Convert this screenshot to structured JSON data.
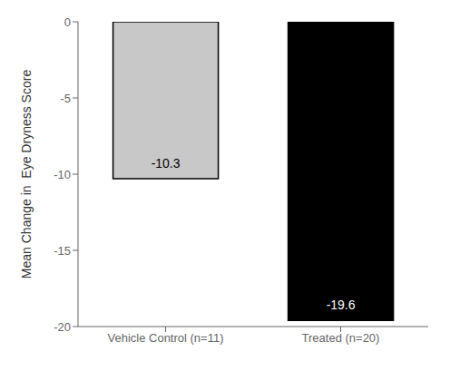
{
  "chart_data": {
    "type": "bar",
    "categories": [
      "Vehicle Control (n=11)",
      "Treated (n=20)"
    ],
    "values": [
      -10.3,
      -19.6
    ],
    "value_labels": [
      "-10.3",
      "-19.6"
    ],
    "colors": [
      "#c8c8c8",
      "#000000"
    ],
    "ylabel": "Mean Change in  Eye Dryness Score",
    "ylim": [
      -20,
      0
    ],
    "yticks": [
      0,
      -5,
      -10,
      -15,
      -20
    ],
    "data_labels": true,
    "grid": false
  }
}
